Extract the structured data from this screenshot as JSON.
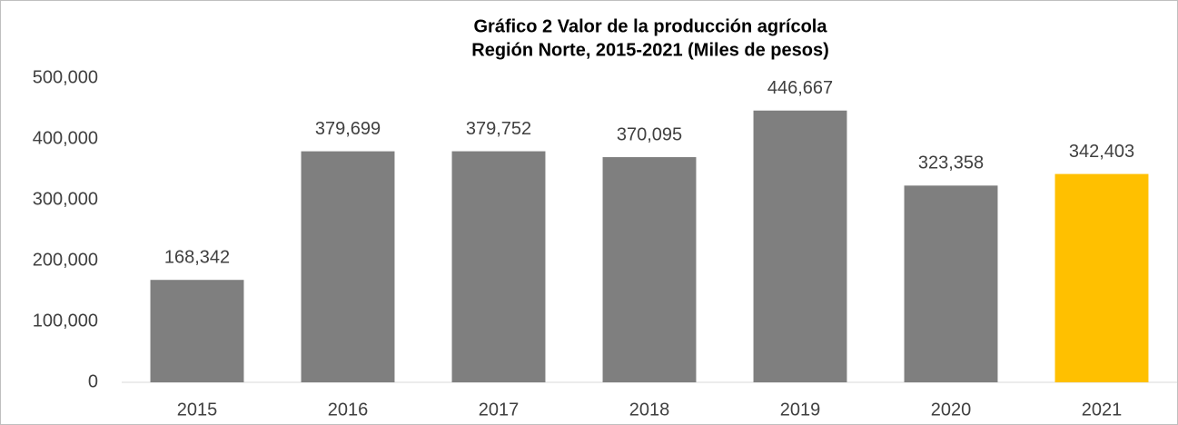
{
  "chart_data": {
    "type": "bar",
    "title": [
      "Gráfico 2 Valor de la producción agrícola",
      "Región Norte, 2015-2021  (Miles de pesos)"
    ],
    "categories": [
      "2015",
      "2016",
      "2017",
      "2018",
      "2019",
      "2020",
      "2021"
    ],
    "values": [
      168342,
      379699,
      379752,
      370095,
      446667,
      323358,
      342403
    ],
    "value_labels": [
      "168,342",
      "379,699",
      "379,752",
      "370,095",
      "446,667",
      "323,358",
      "342,403"
    ],
    "colors": [
      "#7f7f7f",
      "#7f7f7f",
      "#7f7f7f",
      "#7f7f7f",
      "#7f7f7f",
      "#7f7f7f",
      "#ffc000"
    ],
    "ylim": [
      0,
      500000
    ],
    "yticks": [
      0,
      {
        "value": 100000,
        "label": "100,000"
      },
      {
        "value": 200000,
        "label": "200,000"
      },
      {
        "value": 300000,
        "label": "300,000"
      },
      {
        "value": 400000,
        "label": "400,000"
      },
      {
        "value": 500000,
        "label": "500,000"
      }
    ],
    "grid": false
  }
}
